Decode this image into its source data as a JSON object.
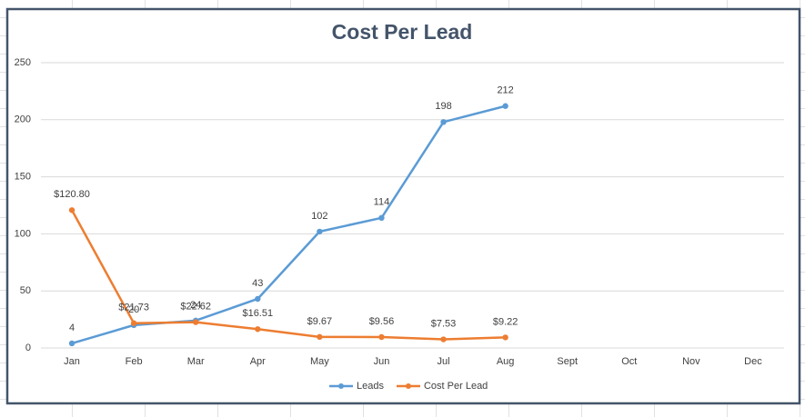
{
  "chart_data": {
    "type": "line",
    "title": "Cost Per Lead",
    "categories": [
      "Jan",
      "Feb",
      "Mar",
      "Apr",
      "May",
      "Jun",
      "Jul",
      "Aug",
      "Sept",
      "Oct",
      "Nov",
      "Dec"
    ],
    "series": [
      {
        "name": "Leads",
        "color": "#5b9bd5",
        "values": [
          4,
          20,
          24,
          43,
          102,
          114,
          198,
          212,
          null,
          null,
          null,
          null
        ]
      },
      {
        "name": "Cost Per Lead",
        "color": "#ed7d31",
        "values": [
          120.8,
          21.73,
          22.62,
          16.51,
          9.67,
          9.56,
          7.53,
          9.22,
          null,
          null,
          null,
          null
        ],
        "value_labels": [
          "$120.80",
          "$21.73",
          "$22.62",
          "$16.51",
          "$9.67",
          "$9.56",
          "$7.53",
          "$9.22",
          null,
          null,
          null,
          null
        ]
      }
    ],
    "ylim": [
      0,
      250
    ],
    "yticks": [
      0,
      50,
      100,
      150,
      200,
      250
    ],
    "grid": true,
    "legend": "bottom"
  }
}
